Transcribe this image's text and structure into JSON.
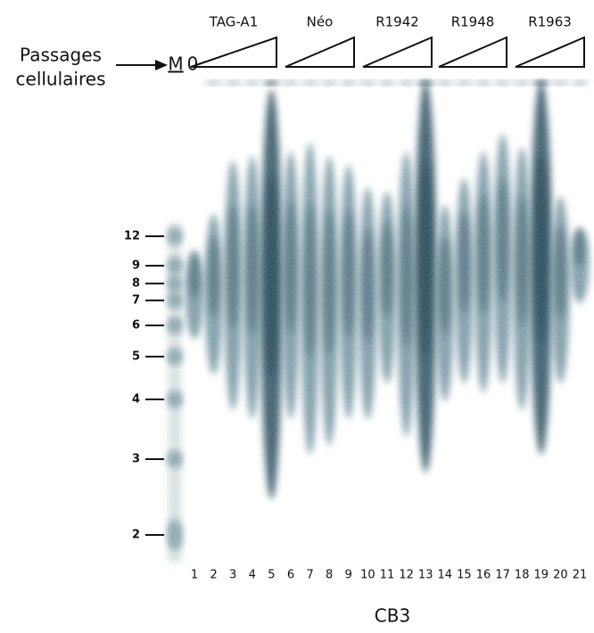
{
  "header": {
    "groups": [
      "TAG-A1",
      "Néo",
      "R1942",
      "R1948",
      "R1963"
    ],
    "passages": [
      "Passages",
      "cellulaires"
    ],
    "marker": "M",
    "zero": "0"
  },
  "size_markers": [
    12,
    9,
    8,
    7,
    6,
    5,
    4,
    3,
    2
  ],
  "lanes": [
    "1",
    "2",
    "3",
    "4",
    "5",
    "6",
    "7",
    "8",
    "9",
    "10",
    "11",
    "12",
    "13",
    "14",
    "15",
    "16",
    "17",
    "18",
    "19",
    "20",
    "21"
  ],
  "footer": "CB3"
}
